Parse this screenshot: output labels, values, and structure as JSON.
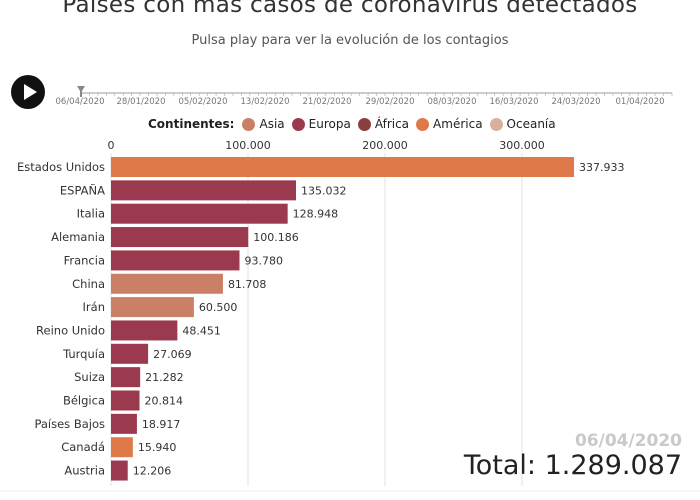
{
  "header": {
    "title": "Países con más casos de coronavirus detectados",
    "subtitle": "Pulsa play para ver la evolución de los contagios"
  },
  "timeline": {
    "labels": [
      "06/04/2020",
      "28/01/2020",
      "05/02/2020",
      "13/02/2020",
      "21/02/2020",
      "29/02/2020",
      "08/03/2020",
      "16/03/2020",
      "24/03/2020",
      "01/04/2020"
    ],
    "current": "06/04/2020"
  },
  "legend": {
    "title": "Continentes:",
    "items": [
      {
        "label": "Asia",
        "color": "#c98066"
      },
      {
        "label": "Europa",
        "color": "#9b3a4f"
      },
      {
        "label": "África",
        "color": "#8a4040"
      },
      {
        "label": "América",
        "color": "#e0794a"
      },
      {
        "label": "Oceanía",
        "color": "#d8b0a0"
      }
    ]
  },
  "chart_data": {
    "type": "bar",
    "orientation": "horizontal",
    "categories": [
      "Estados Unidos",
      "ESPAÑA",
      "Italia",
      "Alemania",
      "Francia",
      "China",
      "Irán",
      "Reino Unido",
      "Turquía",
      "Suiza",
      "Bélgica",
      "Países Bajos",
      "Canadá",
      "Austria"
    ],
    "values": [
      337933,
      135032,
      128948,
      100186,
      93780,
      81708,
      60500,
      48451,
      27069,
      21282,
      20814,
      18917,
      15940,
      12206
    ],
    "value_labels": [
      "337.933",
      "135.032",
      "128.948",
      "100.186",
      "93.780",
      "81.708",
      "60.500",
      "48.451",
      "27.069",
      "21.282",
      "20.814",
      "18.917",
      "15.940",
      "12.206"
    ],
    "continents": [
      "América",
      "Europa",
      "Europa",
      "Europa",
      "Europa",
      "Asia",
      "Asia",
      "Europa",
      "Europa",
      "Europa",
      "Europa",
      "Europa",
      "América",
      "Europa"
    ],
    "xlim": [
      0,
      350000
    ],
    "ticks": [
      0,
      100000,
      200000,
      300000
    ],
    "tick_labels": [
      "0",
      "100.000",
      "200.000",
      "300.000"
    ],
    "grid": true
  },
  "status": {
    "date": "06/04/2020",
    "total": "Total: 1.289.087"
  }
}
